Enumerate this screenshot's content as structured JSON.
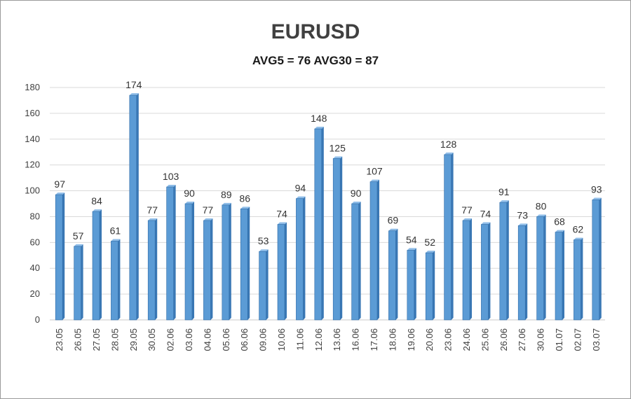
{
  "chart_data": {
    "type": "bar",
    "title": "EURUSD",
    "subtitle": "AVG5 = 76 AVG30 = 87",
    "categories": [
      "23.05",
      "26.05",
      "27.05",
      "28.05",
      "29.05",
      "30.05",
      "02.06",
      "03.06",
      "04.06",
      "05.06",
      "06.06",
      "09.06",
      "10.06",
      "11.06",
      "12.06",
      "13.06",
      "16.06",
      "17.06",
      "18.06",
      "19.06",
      "20.06",
      "23.06",
      "24.06",
      "25.06",
      "26.06",
      "27.06",
      "30.06",
      "01.07",
      "02.07",
      "03.07"
    ],
    "values": [
      97,
      57,
      84,
      61,
      174,
      77,
      103,
      90,
      77,
      89,
      86,
      53,
      74,
      94,
      148,
      125,
      90,
      107,
      69,
      54,
      52,
      128,
      77,
      74,
      91,
      73,
      80,
      68,
      62,
      93
    ],
    "ylim": [
      0,
      180
    ],
    "yticks": [
      0,
      20,
      40,
      60,
      80,
      100,
      120,
      140,
      160,
      180
    ],
    "grid": true,
    "data_labels": true,
    "bar_color": "#5b9bd5",
    "bar_color_light": "#8fbde8",
    "bar_color_dark": "#3a78b5"
  }
}
